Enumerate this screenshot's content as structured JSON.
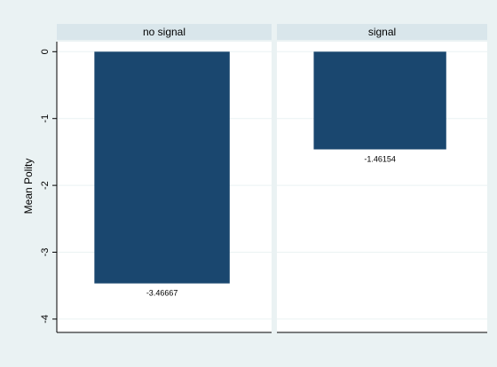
{
  "colors": {
    "background": "#eaf2f3",
    "panel_bg": "#ffffff",
    "strip_bg": "#d9e6eb",
    "bar": "#1a476f",
    "grid": "#eaf2f3",
    "axis": "#000000"
  },
  "chart_data": {
    "type": "bar",
    "ylabel": "Mean Polity",
    "ylim": [
      -4.2,
      0.15
    ],
    "yticks": [
      0,
      -1,
      -2,
      -3,
      -4
    ],
    "ytick_labels": [
      "0",
      "-1",
      "-2",
      "-3",
      "-4"
    ],
    "grid": true,
    "panels": [
      {
        "title": "no signal",
        "value": -3.46667,
        "value_label": "-3.46667"
      },
      {
        "title": "signal",
        "value": -1.46154,
        "value_label": "-1.46154"
      }
    ]
  }
}
